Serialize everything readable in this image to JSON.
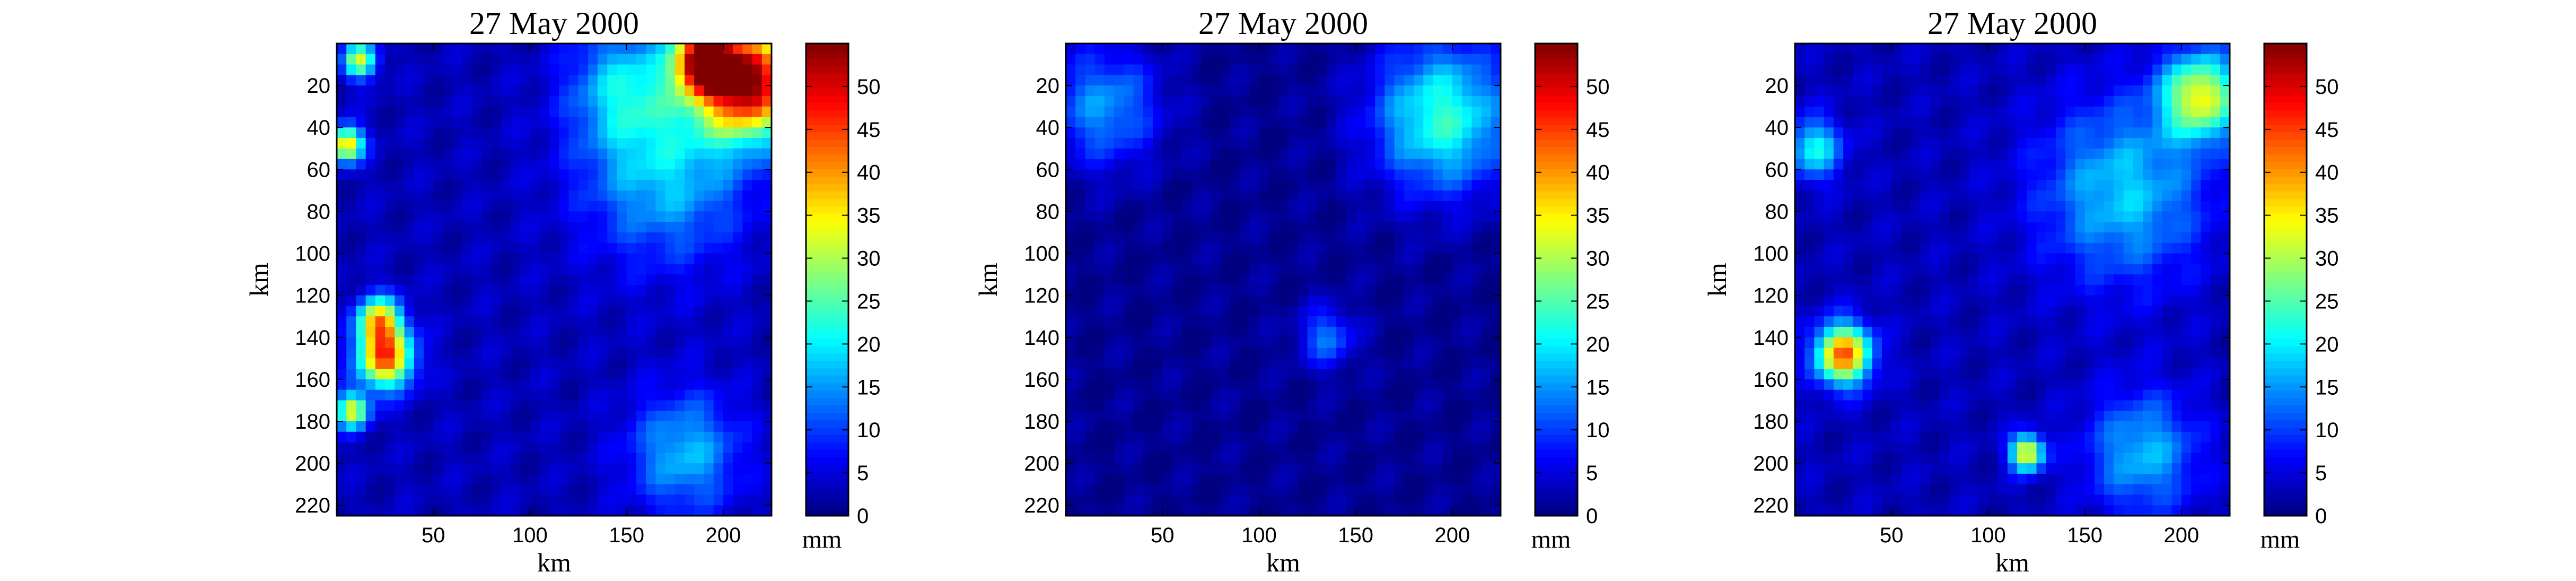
{
  "chart_data": [
    {
      "type": "heatmap",
      "title": "27 May 2000",
      "xlabel": "km",
      "ylabel": "km",
      "x_ticks": [
        50,
        100,
        150,
        200
      ],
      "y_ticks": [
        20,
        40,
        60,
        80,
        100,
        120,
        140,
        160,
        180,
        200,
        220
      ],
      "xlim": [
        0,
        225
      ],
      "ylim": [
        0,
        225
      ],
      "y_direction": "down",
      "colorbar": {
        "label": "mm",
        "ticks": [
          0,
          5,
          10,
          15,
          20,
          25,
          30,
          35,
          40,
          45,
          50
        ],
        "range": [
          0,
          55
        ],
        "colormap": "jet"
      },
      "background_value": 3,
      "hotspots": [
        {
          "x": 212,
          "y": 18,
          "value": 52,
          "spread": 18
        },
        {
          "x": 190,
          "y": 8,
          "value": 45,
          "spread": 10
        },
        {
          "x": 25,
          "y": 150,
          "value": 40,
          "spread": 10
        },
        {
          "x": 22,
          "y": 132,
          "value": 32,
          "spread": 8
        },
        {
          "x": 5,
          "y": 48,
          "value": 35,
          "spread": 6
        },
        {
          "x": 12,
          "y": 8,
          "value": 28,
          "spread": 6
        },
        {
          "x": 8,
          "y": 175,
          "value": 30,
          "spread": 6
        },
        {
          "x": 180,
          "y": 195,
          "value": 14,
          "spread": 20
        },
        {
          "x": 170,
          "y": 60,
          "value": 15,
          "spread": 30
        },
        {
          "x": 150,
          "y": 20,
          "value": 14,
          "spread": 20
        }
      ]
    },
    {
      "type": "heatmap",
      "title": "27 May 2000",
      "xlabel": "km",
      "ylabel": "km",
      "x_ticks": [
        50,
        100,
        150,
        200
      ],
      "y_ticks": [
        20,
        40,
        60,
        80,
        100,
        120,
        140,
        160,
        180,
        200,
        220
      ],
      "xlim": [
        0,
        225
      ],
      "ylim": [
        0,
        225
      ],
      "y_direction": "down",
      "colorbar": {
        "label": "mm",
        "ticks": [
          0,
          5,
          10,
          15,
          20,
          25,
          30,
          35,
          40,
          45,
          50
        ],
        "range": [
          0,
          55
        ],
        "colormap": "jet"
      },
      "background_value": 1,
      "hotspots": [
        {
          "x": 195,
          "y": 35,
          "value": 22,
          "spread": 25
        },
        {
          "x": 20,
          "y": 30,
          "value": 14,
          "spread": 20
        },
        {
          "x": 135,
          "y": 140,
          "value": 12,
          "spread": 10
        }
      ]
    },
    {
      "type": "heatmap",
      "title": "27 May 2000",
      "xlabel": "km",
      "ylabel": "km",
      "x_ticks": [
        50,
        100,
        150,
        200
      ],
      "y_ticks": [
        20,
        40,
        60,
        80,
        100,
        120,
        140,
        160,
        180,
        200,
        220
      ],
      "xlim": [
        0,
        225
      ],
      "ylim": [
        0,
        225
      ],
      "y_direction": "down",
      "colorbar": {
        "label": "mm",
        "ticks": [
          0,
          5,
          10,
          15,
          20,
          25,
          30,
          35,
          40,
          45,
          50
        ],
        "range": [
          0,
          55
        ],
        "colormap": "jet"
      },
      "background_value": 3,
      "hotspots": [
        {
          "x": 25,
          "y": 148,
          "value": 40,
          "spread": 10
        },
        {
          "x": 120,
          "y": 195,
          "value": 33,
          "spread": 6
        },
        {
          "x": 210,
          "y": 25,
          "value": 30,
          "spread": 14
        },
        {
          "x": 180,
          "y": 195,
          "value": 14,
          "spread": 20
        },
        {
          "x": 10,
          "y": 50,
          "value": 18,
          "spread": 10
        },
        {
          "x": 170,
          "y": 70,
          "value": 15,
          "spread": 30
        }
      ]
    }
  ]
}
